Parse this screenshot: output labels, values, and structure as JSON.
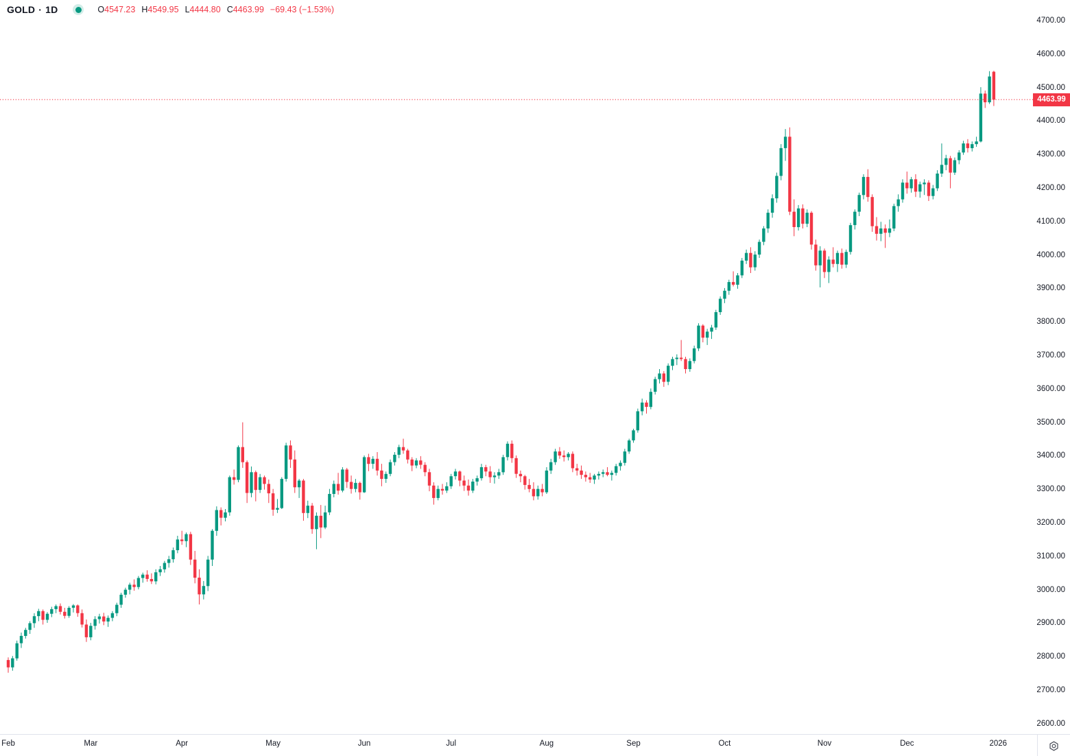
{
  "header": {
    "symbol": "GOLD",
    "separator": "·",
    "timeframe": "1D",
    "status_dot_name": "market-status",
    "ohlc": {
      "open_label": "O",
      "open": "4547.23",
      "high_label": "H",
      "high": "4549.95",
      "low_label": "L",
      "low": "4444.80",
      "close_label": "C",
      "close": "4463.99",
      "change": "−69.43 (−1.53%)"
    }
  },
  "colors": {
    "up": "#089981",
    "down": "#f23645",
    "text": "#131722",
    "price_line": "#f23645",
    "tag_bg": "#f23645",
    "tag_text": "#ffffff",
    "separator": "#e0e3eb",
    "background": "#ffffff"
  },
  "price_tag": {
    "value": "4463.99",
    "price": 4463.99
  },
  "y_axis": {
    "max": 4700,
    "min": 2600,
    "step": 100,
    "labels": [
      "4700.00",
      "4600.00",
      "4500.00",
      "4400.00",
      "4300.00",
      "4200.00",
      "4100.00",
      "4000.00",
      "3900.00",
      "3800.00",
      "3700.00",
      "3600.00",
      "3500.00",
      "3400.00",
      "3300.00",
      "3200.00",
      "3100.00",
      "3000.00",
      "2900.00",
      "2800.00",
      "2700.00",
      "2600.00"
    ]
  },
  "x_axis": {
    "labels": [
      {
        "label": "Feb",
        "bar": 0
      },
      {
        "label": "Mar",
        "bar": 19
      },
      {
        "label": "Apr",
        "bar": 40
      },
      {
        "label": "May",
        "bar": 61
      },
      {
        "label": "Jun",
        "bar": 82
      },
      {
        "label": "Jul",
        "bar": 102
      },
      {
        "label": "Aug",
        "bar": 124
      },
      {
        "label": "Sep",
        "bar": 144
      },
      {
        "label": "Oct",
        "bar": 165
      },
      {
        "label": "Nov",
        "bar": 188
      },
      {
        "label": "Dec",
        "bar": 207
      },
      {
        "label": "2026",
        "bar": 228
      }
    ]
  },
  "bottom_bar": {
    "gear_icon": "settings"
  },
  "chart_data": {
    "type": "candlestick",
    "title": "GOLD daily candlestick chart",
    "symbol": "GOLD",
    "timeframe": "1D",
    "ylim": [
      2600,
      4700
    ],
    "grid": false,
    "last_price": 4463.99,
    "x_months": [
      "Feb",
      "Mar",
      "Apr",
      "May",
      "Jun",
      "Jul",
      "Aug",
      "Sep",
      "Oct",
      "Nov",
      "Dec"
    ],
    "month_start_bars": [
      0,
      19,
      40,
      61,
      82,
      102,
      124,
      144,
      165,
      188,
      207
    ],
    "candles": [
      [
        2790,
        2798,
        2752,
        2768
      ],
      [
        2768,
        2802,
        2758,
        2795
      ],
      [
        2795,
        2848,
        2788,
        2840
      ],
      [
        2840,
        2872,
        2826,
        2862
      ],
      [
        2862,
        2886,
        2854,
        2880
      ],
      [
        2880,
        2906,
        2868,
        2900
      ],
      [
        2900,
        2930,
        2886,
        2921
      ],
      [
        2921,
        2943,
        2906,
        2936
      ],
      [
        2936,
        2941,
        2896,
        2910
      ],
      [
        2910,
        2933,
        2901,
        2928
      ],
      [
        2928,
        2949,
        2918,
        2942
      ],
      [
        2942,
        2956,
        2930,
        2951
      ],
      [
        2951,
        2959,
        2926,
        2934
      ],
      [
        2934,
        2946,
        2914,
        2922
      ],
      [
        2922,
        2951,
        2916,
        2946
      ],
      [
        2946,
        2957,
        2932,
        2953
      ],
      [
        2953,
        2956,
        2919,
        2930
      ],
      [
        2930,
        2941,
        2887,
        2896
      ],
      [
        2896,
        2911,
        2844,
        2858
      ],
      [
        2858,
        2901,
        2849,
        2892
      ],
      [
        2892,
        2921,
        2881,
        2912
      ],
      [
        2912,
        2928,
        2899,
        2920
      ],
      [
        2920,
        2931,
        2894,
        2905
      ],
      [
        2905,
        2923,
        2889,
        2916
      ],
      [
        2916,
        2936,
        2906,
        2930
      ],
      [
        2930,
        2961,
        2921,
        2955
      ],
      [
        2955,
        2991,
        2946,
        2985
      ],
      [
        2985,
        3006,
        2976,
        3000
      ],
      [
        3000,
        3021,
        2986,
        3015
      ],
      [
        3015,
        3031,
        2997,
        3008
      ],
      [
        3008,
        3041,
        3001,
        3035
      ],
      [
        3035,
        3051,
        3021,
        3045
      ],
      [
        3045,
        3058,
        3024,
        3032
      ],
      [
        3032,
        3049,
        3017,
        3025
      ],
      [
        3025,
        3061,
        3016,
        3052
      ],
      [
        3052,
        3071,
        3041,
        3061
      ],
      [
        3061,
        3086,
        3051,
        3080
      ],
      [
        3080,
        3101,
        3066,
        3091
      ],
      [
        3091,
        3126,
        3081,
        3118
      ],
      [
        3118,
        3161,
        3109,
        3150
      ],
      [
        3150,
        3176,
        3134,
        3145
      ],
      [
        3145,
        3171,
        3127,
        3166
      ],
      [
        3166,
        3173,
        3074,
        3090
      ],
      [
        3090,
        3116,
        3019,
        3036
      ],
      [
        3036,
        3061,
        2956,
        2986
      ],
      [
        2986,
        3026,
        2971,
        3011
      ],
      [
        3011,
        3101,
        2996,
        3090
      ],
      [
        3090,
        3181,
        3071,
        3176
      ],
      [
        3176,
        3249,
        3161,
        3238
      ],
      [
        3238,
        3246,
        3192,
        3215
      ],
      [
        3215,
        3241,
        3204,
        3231
      ],
      [
        3231,
        3341,
        3221,
        3336
      ],
      [
        3336,
        3359,
        3314,
        3328
      ],
      [
        3328,
        3431,
        3321,
        3426
      ],
      [
        3426,
        3500,
        3364,
        3381
      ],
      [
        3381,
        3386,
        3259,
        3289
      ],
      [
        3289,
        3368,
        3276,
        3351
      ],
      [
        3351,
        3356,
        3264,
        3298
      ],
      [
        3298,
        3346,
        3289,
        3336
      ],
      [
        3336,
        3341,
        3299,
        3316
      ],
      [
        3316,
        3329,
        3259,
        3288
      ],
      [
        3288,
        3301,
        3221,
        3239
      ],
      [
        3239,
        3271,
        3229,
        3244
      ],
      [
        3244,
        3336,
        3241,
        3331
      ],
      [
        3331,
        3439,
        3323,
        3431
      ],
      [
        3431,
        3446,
        3364,
        3389
      ],
      [
        3389,
        3416,
        3289,
        3306
      ],
      [
        3306,
        3331,
        3274,
        3326
      ],
      [
        3326,
        3331,
        3206,
        3229
      ],
      [
        3229,
        3266,
        3214,
        3251
      ],
      [
        3251,
        3259,
        3167,
        3181
      ],
      [
        3181,
        3231,
        3121,
        3221
      ],
      [
        3221,
        3253,
        3154,
        3186
      ],
      [
        3186,
        3251,
        3181,
        3231
      ],
      [
        3231,
        3301,
        3223,
        3286
      ],
      [
        3286,
        3326,
        3276,
        3316
      ],
      [
        3316,
        3349,
        3284,
        3296
      ],
      [
        3296,
        3366,
        3291,
        3359
      ],
      [
        3359,
        3364,
        3304,
        3322
      ],
      [
        3322,
        3341,
        3287,
        3301
      ],
      [
        3301,
        3331,
        3291,
        3319
      ],
      [
        3319,
        3323,
        3269,
        3291
      ],
      [
        3291,
        3401,
        3289,
        3396
      ],
      [
        3396,
        3406,
        3354,
        3376
      ],
      [
        3376,
        3399,
        3361,
        3391
      ],
      [
        3391,
        3411,
        3341,
        3356
      ],
      [
        3356,
        3376,
        3309,
        3331
      ],
      [
        3331,
        3353,
        3319,
        3346
      ],
      [
        3346,
        3389,
        3339,
        3381
      ],
      [
        3381,
        3411,
        3371,
        3403
      ],
      [
        3403,
        3433,
        3393,
        3426
      ],
      [
        3426,
        3451,
        3406,
        3416
      ],
      [
        3416,
        3421,
        3377,
        3389
      ],
      [
        3389,
        3396,
        3354,
        3371
      ],
      [
        3371,
        3393,
        3363,
        3386
      ],
      [
        3386,
        3399,
        3361,
        3373
      ],
      [
        3373,
        3381,
        3339,
        3351
      ],
      [
        3351,
        3361,
        3294,
        3311
      ],
      [
        3311,
        3321,
        3254,
        3274
      ],
      [
        3274,
        3311,
        3267,
        3301
      ],
      [
        3301,
        3316,
        3284,
        3296
      ],
      [
        3296,
        3321,
        3289,
        3309
      ],
      [
        3309,
        3346,
        3301,
        3339
      ],
      [
        3339,
        3361,
        3329,
        3353
      ],
      [
        3353,
        3356,
        3309,
        3326
      ],
      [
        3326,
        3341,
        3295,
        3311
      ],
      [
        3311,
        3329,
        3281,
        3296
      ],
      [
        3296,
        3331,
        3289,
        3323
      ],
      [
        3323,
        3341,
        3311,
        3333
      ],
      [
        3333,
        3376,
        3326,
        3366
      ],
      [
        3366,
        3373,
        3339,
        3353
      ],
      [
        3353,
        3369,
        3319,
        3336
      ],
      [
        3336,
        3351,
        3317,
        3341
      ],
      [
        3341,
        3361,
        3331,
        3351
      ],
      [
        3351,
        3403,
        3343,
        3396
      ],
      [
        3396,
        3443,
        3386,
        3436
      ],
      [
        3436,
        3446,
        3379,
        3393
      ],
      [
        3393,
        3401,
        3334,
        3346
      ],
      [
        3346,
        3356,
        3321,
        3339
      ],
      [
        3339,
        3343,
        3299,
        3313
      ],
      [
        3313,
        3331,
        3291,
        3301
      ],
      [
        3301,
        3321,
        3267,
        3279
      ],
      [
        3279,
        3311,
        3269,
        3301
      ],
      [
        3301,
        3316,
        3279,
        3291
      ],
      [
        3291,
        3366,
        3286,
        3356
      ],
      [
        3356,
        3391,
        3346,
        3381
      ],
      [
        3381,
        3421,
        3373,
        3413
      ],
      [
        3413,
        3426,
        3391,
        3401
      ],
      [
        3401,
        3416,
        3383,
        3396
      ],
      [
        3396,
        3411,
        3386,
        3406
      ],
      [
        3406,
        3413,
        3351,
        3363
      ],
      [
        3363,
        3376,
        3341,
        3356
      ],
      [
        3356,
        3371,
        3331,
        3343
      ],
      [
        3343,
        3353,
        3323,
        3336
      ],
      [
        3336,
        3349,
        3319,
        3329
      ],
      [
        3329,
        3346,
        3316,
        3341
      ],
      [
        3341,
        3353,
        3329,
        3346
      ],
      [
        3346,
        3359,
        3336,
        3351
      ],
      [
        3351,
        3366,
        3339,
        3343
      ],
      [
        3343,
        3356,
        3326,
        3349
      ],
      [
        3349,
        3376,
        3341,
        3369
      ],
      [
        3369,
        3386,
        3356,
        3379
      ],
      [
        3379,
        3421,
        3371,
        3413
      ],
      [
        3413,
        3451,
        3406,
        3446
      ],
      [
        3446,
        3481,
        3439,
        3476
      ],
      [
        3476,
        3541,
        3469,
        3533
      ],
      [
        3533,
        3571,
        3521,
        3559
      ],
      [
        3559,
        3566,
        3526,
        3546
      ],
      [
        3546,
        3601,
        3539,
        3591
      ],
      [
        3591,
        3636,
        3583,
        3629
      ],
      [
        3629,
        3659,
        3616,
        3646
      ],
      [
        3646,
        3653,
        3606,
        3621
      ],
      [
        3621,
        3676,
        3611,
        3669
      ],
      [
        3669,
        3696,
        3656,
        3689
      ],
      [
        3689,
        3703,
        3671,
        3693
      ],
      [
        3693,
        3746,
        3683,
        3689
      ],
      [
        3689,
        3696,
        3646,
        3659
      ],
      [
        3659,
        3691,
        3651,
        3683
      ],
      [
        3683,
        3729,
        3676,
        3721
      ],
      [
        3721,
        3796,
        3713,
        3789
      ],
      [
        3789,
        3793,
        3739,
        3753
      ],
      [
        3753,
        3779,
        3731,
        3771
      ],
      [
        3771,
        3791,
        3749,
        3783
      ],
      [
        3783,
        3836,
        3776,
        3829
      ],
      [
        3829,
        3876,
        3821,
        3869
      ],
      [
        3869,
        3901,
        3856,
        3893
      ],
      [
        3893,
        3926,
        3881,
        3919
      ],
      [
        3919,
        3951,
        3906,
        3911
      ],
      [
        3911,
        3946,
        3899,
        3939
      ],
      [
        3939,
        3991,
        3931,
        3983
      ],
      [
        3983,
        4016,
        3973,
        4006
      ],
      [
        4006,
        4023,
        3946,
        3963
      ],
      [
        3963,
        4011,
        3953,
        4001
      ],
      [
        4001,
        4046,
        3991,
        4039
      ],
      [
        4039,
        4086,
        4029,
        4079
      ],
      [
        4079,
        4136,
        4066,
        4126
      ],
      [
        4126,
        4181,
        4111,
        4169
      ],
      [
        4169,
        4246,
        4156,
        4236
      ],
      [
        4236,
        4331,
        4223,
        4319
      ],
      [
        4319,
        4376,
        4281,
        4353
      ],
      [
        4353,
        4381,
        4119,
        4129
      ],
      [
        4129,
        4166,
        4056,
        4083
      ],
      [
        4083,
        4149,
        4073,
        4139
      ],
      [
        4139,
        4151,
        4079,
        4093
      ],
      [
        4093,
        4136,
        4083,
        4126
      ],
      [
        4126,
        4131,
        4016,
        4031
      ],
      [
        4031,
        4046,
        3953,
        3969
      ],
      [
        3969,
        4026,
        3903,
        4013
      ],
      [
        4013,
        4019,
        3931,
        3949
      ],
      [
        3949,
        3996,
        3916,
        3986
      ],
      [
        3986,
        4023,
        3963,
        3973
      ],
      [
        3973,
        4013,
        3949,
        4006
      ],
      [
        4006,
        4019,
        3959,
        3971
      ],
      [
        3971,
        4016,
        3961,
        4009
      ],
      [
        4009,
        4096,
        4001,
        4089
      ],
      [
        4089,
        4136,
        4076,
        4129
      ],
      [
        4129,
        4186,
        4116,
        4179
      ],
      [
        4179,
        4241,
        4166,
        4233
      ],
      [
        4233,
        4256,
        4159,
        4173
      ],
      [
        4173,
        4181,
        4069,
        4086
      ],
      [
        4086,
        4113,
        4043,
        4063
      ],
      [
        4063,
        4099,
        4041,
        4079
      ],
      [
        4079,
        4091,
        4021,
        4066
      ],
      [
        4066,
        4106,
        4053,
        4079
      ],
      [
        4079,
        4153,
        4071,
        4146
      ],
      [
        4146,
        4181,
        4129,
        4166
      ],
      [
        4166,
        4226,
        4156,
        4216
      ],
      [
        4216,
        4249,
        4183,
        4199
      ],
      [
        4199,
        4233,
        4186,
        4226
      ],
      [
        4226,
        4241,
        4173,
        4189
      ],
      [
        4189,
        4219,
        4171,
        4211
      ],
      [
        4211,
        4226,
        4179,
        4216
      ],
      [
        4216,
        4223,
        4161,
        4176
      ],
      [
        4176,
        4209,
        4166,
        4199
      ],
      [
        4199,
        4253,
        4191,
        4243
      ],
      [
        4243,
        4333,
        4233,
        4269
      ],
      [
        4269,
        4299,
        4253,
        4289
      ],
      [
        4289,
        4296,
        4199,
        4246
      ],
      [
        4246,
        4291,
        4239,
        4283
      ],
      [
        4283,
        4313,
        4271,
        4306
      ],
      [
        4306,
        4341,
        4299,
        4333
      ],
      [
        4333,
        4346,
        4306,
        4319
      ],
      [
        4319,
        4339,
        4309,
        4331
      ],
      [
        4331,
        4353,
        4323,
        4339
      ],
      [
        4339,
        4501,
        4336,
        4482
      ],
      [
        4482,
        4491,
        4439,
        4456
      ],
      [
        4456,
        4549,
        4451,
        4533
      ],
      [
        4547.23,
        4549.95,
        4444.8,
        4463.99
      ]
    ]
  }
}
